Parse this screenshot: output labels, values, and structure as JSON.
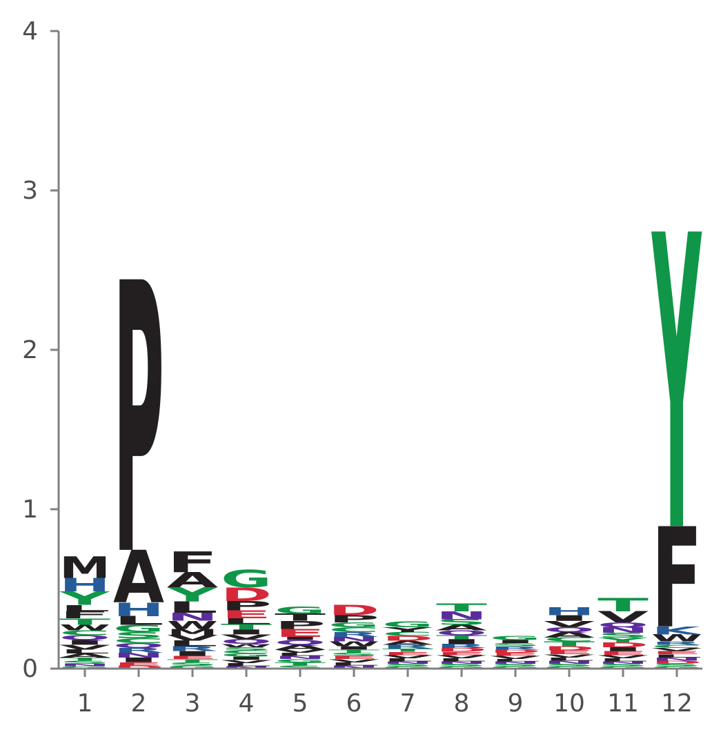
{
  "chart_data": {
    "type": "sequence-logo",
    "title": "",
    "xlabel": "",
    "ylabel": "",
    "ylim": [
      0,
      4
    ],
    "y_ticks": [
      "0",
      "1",
      "2",
      "3",
      "4"
    ],
    "categories": [
      "1",
      "2",
      "3",
      "4",
      "5",
      "6",
      "7",
      "8",
      "9",
      "10",
      "11",
      "12"
    ],
    "grid": false,
    "colors": {
      "black": "#231f20",
      "green": "#109648",
      "blue": "#255c99",
      "purple": "#5b2c9e",
      "red": "#d62839",
      "axis": "#808080",
      "tick_text": "#4d4d4d"
    },
    "stacks": [
      [
        [
          "G",
          0.015,
          "green"
        ],
        [
          "N",
          0.015,
          "purple"
        ],
        [
          "S",
          0.02,
          "green"
        ],
        [
          "T",
          0.02,
          "green"
        ],
        [
          "A",
          0.025,
          "black"
        ],
        [
          "L",
          0.025,
          "black"
        ],
        [
          "V",
          0.03,
          "black"
        ],
        [
          "I",
          0.03,
          "black"
        ],
        [
          "Q",
          0.03,
          "purple"
        ],
        [
          "C",
          0.03,
          "green"
        ],
        [
          "W",
          0.035,
          "black"
        ],
        [
          "T",
          0.04,
          "green"
        ],
        [
          "F",
          0.045,
          "black"
        ],
        [
          "L",
          0.04,
          "black"
        ],
        [
          "Y",
          0.085,
          "green"
        ],
        [
          "H",
          0.085,
          "blue"
        ],
        [
          "M",
          0.135,
          "black"
        ]
      ],
      [
        [
          "D",
          0.02,
          "red"
        ],
        [
          "E",
          0.02,
          "red"
        ],
        [
          "I",
          0.03,
          "black"
        ],
        [
          "N",
          0.03,
          "purple"
        ],
        [
          "R",
          0.03,
          "blue"
        ],
        [
          "Q",
          0.03,
          "purple"
        ],
        [
          "C",
          0.03,
          "green"
        ],
        [
          "S",
          0.04,
          "green"
        ],
        [
          "G",
          0.045,
          "green"
        ],
        [
          "L",
          0.055,
          "black"
        ],
        [
          "H",
          0.085,
          "blue"
        ],
        [
          "A",
          0.33,
          "black"
        ],
        [
          "P",
          1.7,
          "black"
        ]
      ],
      [
        [
          "G",
          0.02,
          "green"
        ],
        [
          "S",
          0.02,
          "green"
        ],
        [
          "T",
          0.02,
          "green"
        ],
        [
          "E",
          0.02,
          "red"
        ],
        [
          "I",
          0.03,
          "black"
        ],
        [
          "R",
          0.03,
          "blue"
        ],
        [
          "L",
          0.035,
          "black"
        ],
        [
          "V",
          0.035,
          "black"
        ],
        [
          "M",
          0.04,
          "black"
        ],
        [
          "W",
          0.05,
          "black"
        ],
        [
          "N",
          0.05,
          "purple"
        ],
        [
          "L",
          0.07,
          "black"
        ],
        [
          "Y",
          0.09,
          "green"
        ],
        [
          "A",
          0.095,
          "black"
        ],
        [
          "F",
          0.13,
          "black"
        ]
      ],
      [
        [
          "N",
          0.015,
          "purple"
        ],
        [
          "L",
          0.02,
          "black"
        ],
        [
          "V",
          0.02,
          "black"
        ],
        [
          "I",
          0.02,
          "black"
        ],
        [
          "G",
          0.02,
          "green"
        ],
        [
          "C",
          0.02,
          "green"
        ],
        [
          "S",
          0.02,
          "green"
        ],
        [
          "W",
          0.02,
          "black"
        ],
        [
          "Q",
          0.03,
          "purple"
        ],
        [
          "V",
          0.03,
          "black"
        ],
        [
          "I",
          0.03,
          "black"
        ],
        [
          "T",
          0.035,
          "green"
        ],
        [
          "L",
          0.035,
          "black"
        ],
        [
          "E",
          0.05,
          "red"
        ],
        [
          "P",
          0.06,
          "black"
        ],
        [
          "D",
          0.085,
          "red"
        ],
        [
          "G",
          0.11,
          "green"
        ]
      ],
      [
        [
          "S",
          0.02,
          "green"
        ],
        [
          "T",
          0.02,
          "green"
        ],
        [
          "G",
          0.02,
          "green"
        ],
        [
          "N",
          0.02,
          "purple"
        ],
        [
          "L",
          0.02,
          "black"
        ],
        [
          "V",
          0.02,
          "black"
        ],
        [
          "A",
          0.03,
          "black"
        ],
        [
          "Q",
          0.03,
          "purple"
        ],
        [
          "I",
          0.02,
          "black"
        ],
        [
          "E",
          0.05,
          "red"
        ],
        [
          "P",
          0.05,
          "black"
        ],
        [
          "T",
          0.045,
          "black"
        ],
        [
          "G",
          0.045,
          "green"
        ]
      ],
      [
        [
          "N",
          0.02,
          "purple"
        ],
        [
          "L",
          0.02,
          "black"
        ],
        [
          "V",
          0.02,
          "black"
        ],
        [
          "E",
          0.02,
          "red"
        ],
        [
          "S",
          0.02,
          "green"
        ],
        [
          "T",
          0.02,
          "green"
        ],
        [
          "I",
          0.02,
          "black"
        ],
        [
          "W",
          0.03,
          "black"
        ],
        [
          "N",
          0.03,
          "purple"
        ],
        [
          "R",
          0.03,
          "blue"
        ],
        [
          "C",
          0.03,
          "green"
        ],
        [
          "G",
          0.03,
          "green"
        ],
        [
          "P",
          0.045,
          "black"
        ],
        [
          "D",
          0.065,
          "red"
        ]
      ],
      [
        [
          "G",
          0.015,
          "green"
        ],
        [
          "S",
          0.015,
          "green"
        ],
        [
          "N",
          0.015,
          "purple"
        ],
        [
          "L",
          0.02,
          "black"
        ],
        [
          "V",
          0.02,
          "black"
        ],
        [
          "E",
          0.02,
          "red"
        ],
        [
          "T",
          0.02,
          "green"
        ],
        [
          "R",
          0.025,
          "blue"
        ],
        [
          "A",
          0.025,
          "black"
        ],
        [
          "D",
          0.03,
          "red"
        ],
        [
          "C",
          0.025,
          "green"
        ],
        [
          "Y",
          0.03,
          "black"
        ],
        [
          "G",
          0.035,
          "green"
        ]
      ],
      [
        [
          "G",
          0.015,
          "green"
        ],
        [
          "S",
          0.015,
          "green"
        ],
        [
          "N",
          0.015,
          "purple"
        ],
        [
          "L",
          0.02,
          "black"
        ],
        [
          "V",
          0.02,
          "black"
        ],
        [
          "E",
          0.02,
          "red"
        ],
        [
          "D",
          0.025,
          "red"
        ],
        [
          "R",
          0.025,
          "blue"
        ],
        [
          "I",
          0.03,
          "black"
        ],
        [
          "T",
          0.025,
          "green"
        ],
        [
          "Q",
          0.03,
          "purple"
        ],
        [
          "A",
          0.035,
          "black"
        ],
        [
          "S",
          0.035,
          "green"
        ],
        [
          "N",
          0.05,
          "purple"
        ],
        [
          "T",
          0.05,
          "green"
        ]
      ],
      [
        [
          "G",
          0.015,
          "green"
        ],
        [
          "S",
          0.015,
          "green"
        ],
        [
          "N",
          0.015,
          "purple"
        ],
        [
          "L",
          0.015,
          "black"
        ],
        [
          "V",
          0.02,
          "black"
        ],
        [
          "E",
          0.02,
          "red"
        ],
        [
          "D",
          0.02,
          "red"
        ],
        [
          "R",
          0.02,
          "blue"
        ],
        [
          "S",
          0.02,
          "green"
        ],
        [
          "I",
          0.02,
          "black"
        ],
        [
          "G",
          0.025,
          "green"
        ]
      ],
      [
        [
          "G",
          0.015,
          "green"
        ],
        [
          "S",
          0.015,
          "green"
        ],
        [
          "N",
          0.02,
          "purple"
        ],
        [
          "L",
          0.02,
          "black"
        ],
        [
          "V",
          0.02,
          "black"
        ],
        [
          "E",
          0.025,
          "red"
        ],
        [
          "D",
          0.025,
          "red"
        ],
        [
          "T",
          0.03,
          "green"
        ],
        [
          "C",
          0.025,
          "green"
        ],
        [
          "A",
          0.035,
          "black"
        ],
        [
          "Q",
          0.03,
          "purple"
        ],
        [
          "V",
          0.04,
          "black"
        ],
        [
          "I",
          0.035,
          "black"
        ],
        [
          "H",
          0.05,
          "blue"
        ]
      ],
      [
        [
          "G",
          0.015,
          "green"
        ],
        [
          "S",
          0.015,
          "green"
        ],
        [
          "N",
          0.015,
          "purple"
        ],
        [
          "L",
          0.02,
          "black"
        ],
        [
          "V",
          0.02,
          "black"
        ],
        [
          "E",
          0.025,
          "red"
        ],
        [
          "I",
          0.025,
          "black"
        ],
        [
          "D",
          0.03,
          "red"
        ],
        [
          "Y",
          0.03,
          "green"
        ],
        [
          "S",
          0.03,
          "green"
        ],
        [
          "N",
          0.035,
          "purple"
        ],
        [
          "Q",
          0.03,
          "purple"
        ],
        [
          "V",
          0.07,
          "black"
        ],
        [
          "T",
          0.085,
          "green"
        ]
      ],
      [
        [
          "G",
          0.015,
          "green"
        ],
        [
          "S",
          0.015,
          "green"
        ],
        [
          "D",
          0.02,
          "red"
        ],
        [
          "N",
          0.02,
          "purple"
        ],
        [
          "L",
          0.02,
          "black"
        ],
        [
          "E",
          0.02,
          "red"
        ],
        [
          "V",
          0.02,
          "black"
        ],
        [
          "C",
          0.02,
          "green"
        ],
        [
          "R",
          0.02,
          "blue"
        ],
        [
          "W",
          0.045,
          "black"
        ],
        [
          "K",
          0.05,
          "blue"
        ],
        [
          "F",
          0.63,
          "black"
        ],
        [
          "Y",
          1.85,
          "green"
        ]
      ]
    ]
  }
}
